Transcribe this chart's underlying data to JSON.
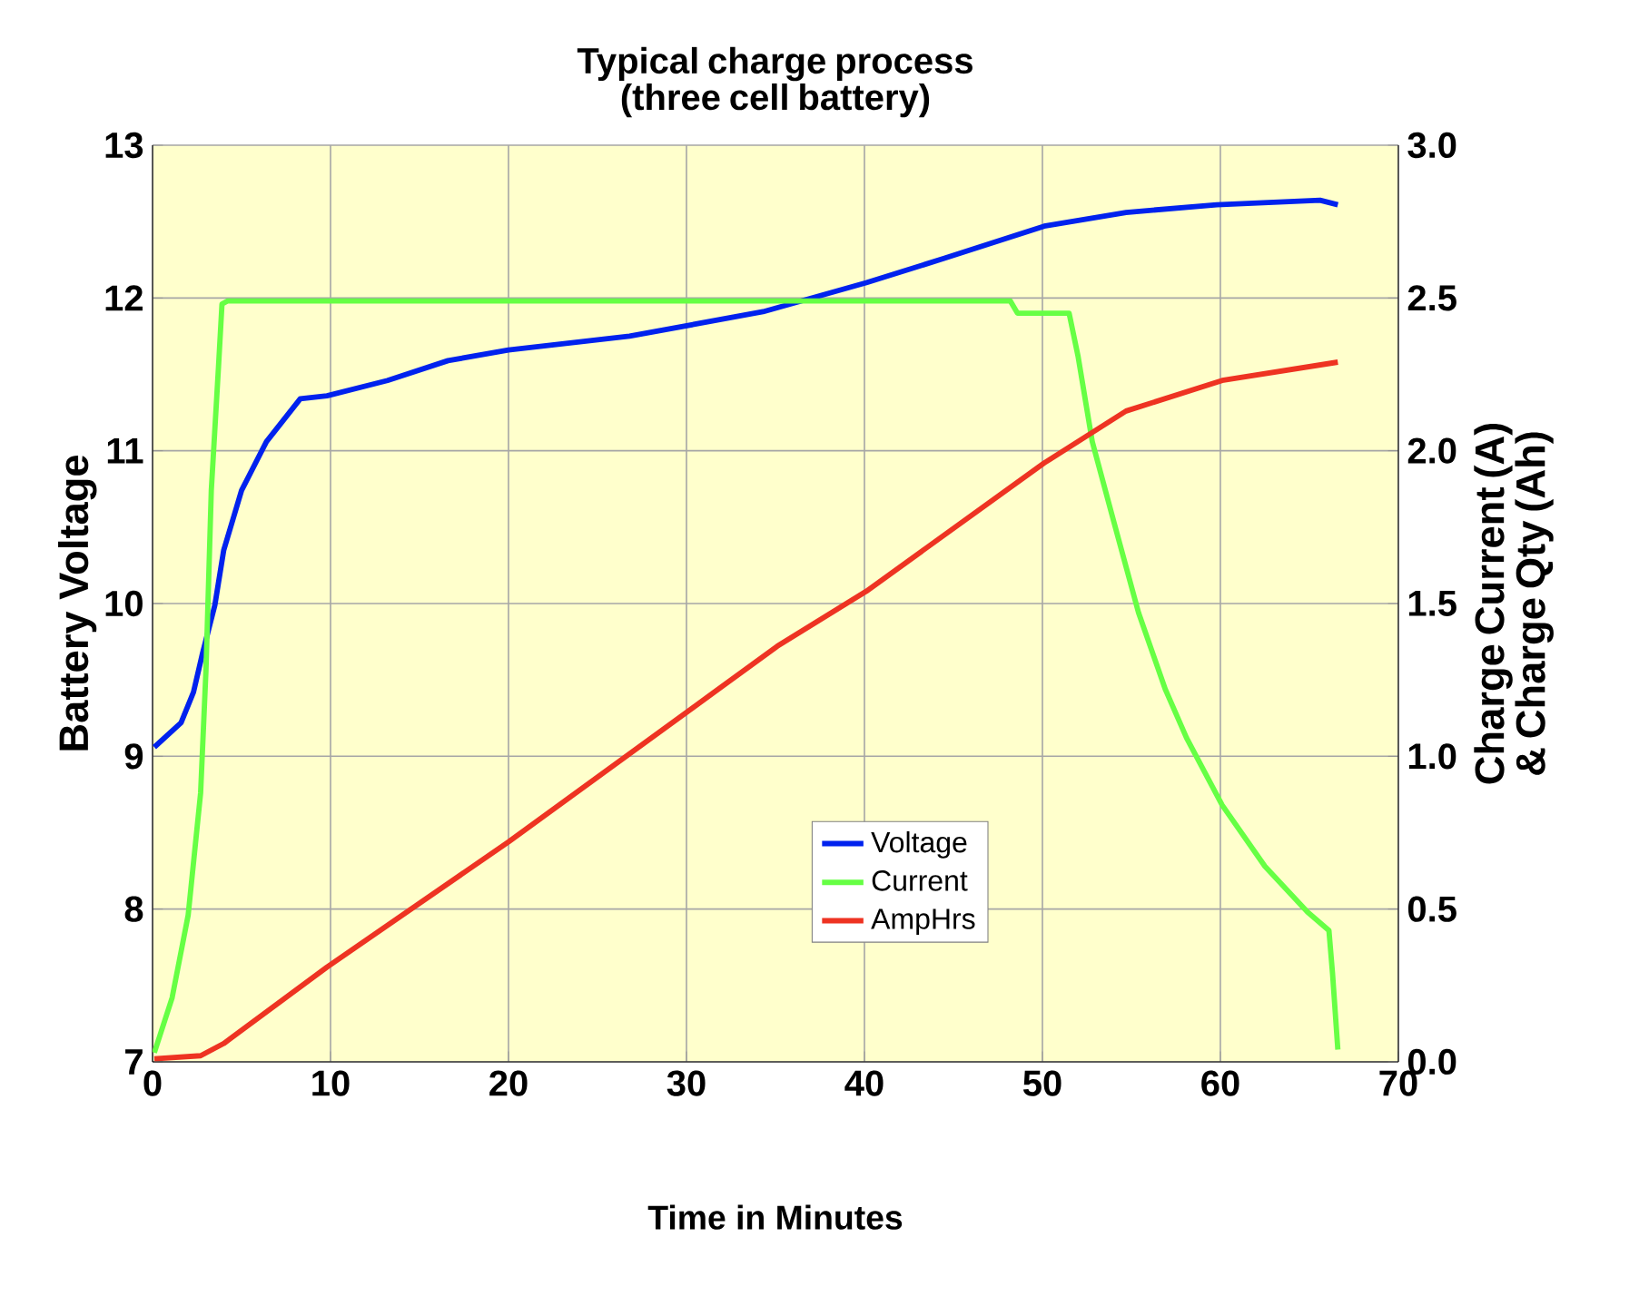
{
  "chart_data": {
    "type": "line",
    "title": "Typical charge process\n(three cell battery)",
    "xlabel": "Time in Minutes",
    "ylabel": "Battery Voltage",
    "y2label": "Charge Current (A)\n& Charge Qty (Ah)",
    "xlim": [
      0,
      70
    ],
    "xticks": [
      0,
      10,
      20,
      30,
      40,
      50,
      60,
      70
    ],
    "ylim": [
      7,
      13
    ],
    "yticks": [
      7,
      8,
      9,
      10,
      11,
      12,
      13
    ],
    "y2lim": [
      0,
      3
    ],
    "y2ticks": [
      {
        "value": 0,
        "label": "0.0"
      },
      {
        "value": 0.5,
        "label": "0.5"
      },
      {
        "value": 1,
        "label": "1.0"
      },
      {
        "value": 1.5,
        "label": "1.5"
      },
      {
        "value": 2,
        "label": "2.0"
      },
      {
        "value": 2.5,
        "label": "2.5"
      },
      {
        "value": 3,
        "label": "3.0"
      }
    ],
    "grid": true,
    "legend": "bottom",
    "marker": "none",
    "line_style": "solid",
    "series": [
      {
        "name": "Voltage",
        "color": "#0022ee",
        "axis": "y",
        "x": [
          0.1,
          1.6,
          2.3,
          2.8,
          3.5,
          4.0,
          5.0,
          6.4,
          8.3,
          9.8,
          13.2,
          16.6,
          20,
          26.8,
          34.3,
          40.1,
          44.5,
          50.1,
          54.7,
          59.8,
          65.6,
          66.6
        ],
        "values": [
          9.06,
          9.22,
          9.42,
          9.67,
          9.99,
          10.35,
          10.74,
          11.06,
          11.34,
          11.36,
          11.46,
          11.59,
          11.66,
          11.75,
          11.91,
          12.1,
          12.26,
          12.47,
          12.56,
          12.61,
          12.64,
          12.61
        ]
      },
      {
        "name": "Current",
        "color": "#66ff44",
        "axis": "y2",
        "x": [
          0.1,
          1.1,
          2.0,
          2.7,
          3.0,
          3.3,
          3.7,
          3.9,
          4.2,
          48.2,
          48.6,
          51.5,
          52.0,
          52.8,
          54.0,
          55.4,
          56.9,
          58.1,
          60.1,
          62.5,
          64.9,
          66.1,
          66.3,
          66.6
        ],
        "values": [
          0.03,
          0.21,
          0.48,
          0.88,
          1.28,
          1.87,
          2.27,
          2.48,
          2.49,
          2.49,
          2.45,
          2.45,
          2.31,
          2.03,
          1.77,
          1.47,
          1.22,
          1.06,
          0.84,
          0.64,
          0.49,
          0.43,
          0.29,
          0.04
        ]
      },
      {
        "name": "AmpHrs",
        "color": "#ee3322",
        "axis": "y2",
        "x": [
          0.1,
          2.7,
          4.0,
          9.8,
          20,
          35.1,
          40.1,
          50.1,
          54.7,
          60.1,
          66.6
        ],
        "values": [
          0.01,
          0.02,
          0.06,
          0.31,
          0.72,
          1.36,
          1.54,
          1.96,
          2.13,
          2.23,
          2.29
        ]
      }
    ]
  }
}
